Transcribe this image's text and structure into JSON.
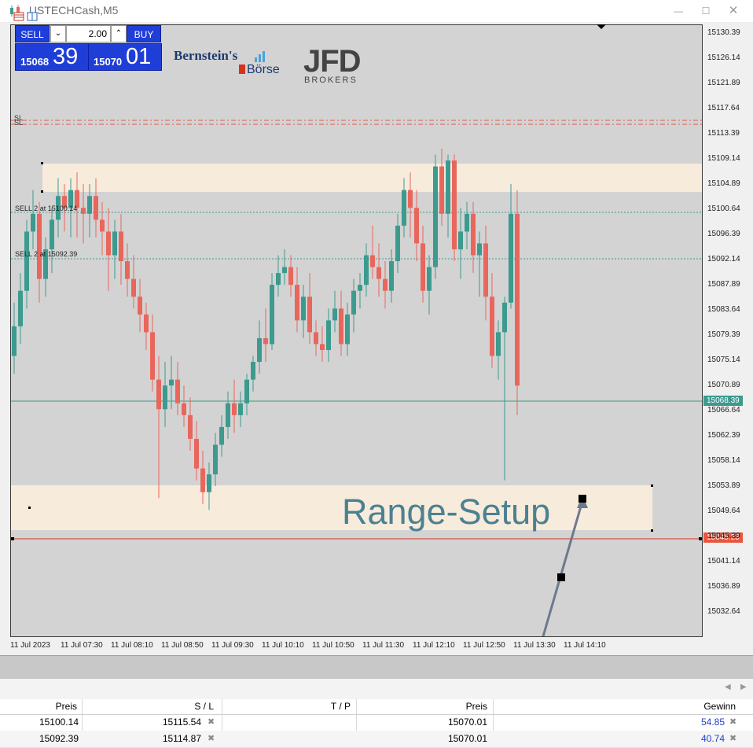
{
  "window": {
    "title": ".USTECHCash,M5"
  },
  "trade_panel": {
    "sell_label": "SELL",
    "buy_label": "BUY",
    "volume": "2.00",
    "sell_price_small": "15068",
    "sell_price_big": "39",
    "buy_price_small": "15070",
    "buy_price_big": "01"
  },
  "logos": {
    "bernstein_line1": "Bernstein's",
    "bernstein_line2": "Börse",
    "jfd_line1": "JFD",
    "jfd_line2": "BROKERS"
  },
  "chart": {
    "sl_label_1": "SL",
    "sl_label_2": "SL",
    "order1_label": "SELL 2 at 15100.14",
    "order2_label": "SELL 2 at 15092.39",
    "range_text": "Range-Setup",
    "bid_price_label": "15068.39",
    "red_line_price": "15045.23",
    "y_labels": [
      "15130.39",
      "15126.14",
      "15121.89",
      "15117.64",
      "15113.39",
      "15109.14",
      "15104.89",
      "15100.64",
      "15096.39",
      "15092.14",
      "15087.89",
      "15083.64",
      "15079.39",
      "15075.14",
      "15070.89",
      "15066.64",
      "15062.39",
      "15058.14",
      "15053.89",
      "15049.64",
      "15045.39",
      "15041.14",
      "15036.89",
      "15032.64"
    ],
    "x_labels": [
      "11 Jul 2023",
      "11 Jul 07:30",
      "11 Jul 08:10",
      "11 Jul 08:50",
      "11 Jul 09:30",
      "11 Jul 10:10",
      "11 Jul 10:50",
      "11 Jul 11:30",
      "11 Jul 12:10",
      "11 Jul 12:50",
      "11 Jul 13:30",
      "11 Jul 14:10"
    ],
    "colors": {
      "bull": "#3c9a8e",
      "bear": "#e8665c",
      "background": "#d3d3d3",
      "zone": "#f7ebdc",
      "sl_line": "#e05a4c",
      "order_line": "#3c9a8e",
      "range_text": "#4b8191"
    },
    "candles": [
      [
        15076,
        15085,
        15073,
        15081
      ],
      [
        15081,
        15090,
        15078,
        15087
      ],
      [
        15087,
        15099,
        15084,
        15097
      ],
      [
        15097,
        15104,
        15094,
        15100
      ],
      [
        15100,
        15102,
        15085,
        15089
      ],
      [
        15089,
        15096,
        15086,
        15094
      ],
      [
        15094,
        15101,
        15090,
        15099
      ],
      [
        15099,
        15106,
        15096,
        15103
      ],
      [
        15103,
        15105,
        15097,
        15101
      ],
      [
        15101,
        15106,
        15096,
        15104
      ],
      [
        15104,
        15107,
        15096,
        15101
      ],
      [
        15101,
        15105,
        15095,
        15100
      ],
      [
        15100,
        15105,
        15096,
        15103
      ],
      [
        15103,
        15106,
        15096,
        15099
      ],
      [
        15099,
        15102,
        15093,
        15097
      ],
      [
        15097,
        15101,
        15087,
        15093
      ],
      [
        15093,
        15099,
        15089,
        15097
      ],
      [
        15097,
        15100,
        15088,
        15092
      ],
      [
        15092,
        15095,
        15086,
        15089
      ],
      [
        15089,
        15093,
        15084,
        15086
      ],
      [
        15086,
        15089,
        15080,
        15083
      ],
      [
        15083,
        15085,
        15077,
        15080
      ],
      [
        15080,
        15083,
        15070,
        15072
      ],
      [
        15072,
        15076,
        15052,
        15067
      ],
      [
        15067,
        15075,
        15064,
        15071
      ],
      [
        15071,
        15076,
        15067,
        15072
      ],
      [
        15072,
        15075,
        15066,
        15068
      ],
      [
        15068,
        15071,
        15064,
        15066
      ],
      [
        15066,
        15069,
        15060,
        15062
      ],
      [
        15062,
        15065,
        15055,
        15057
      ],
      [
        15057,
        15060,
        15051,
        15053
      ],
      [
        15053,
        15058,
        15050,
        15056
      ],
      [
        15056,
        15063,
        15054,
        15061
      ],
      [
        15061,
        15066,
        15059,
        15064
      ],
      [
        15064,
        15070,
        15062,
        15068
      ],
      [
        15068,
        15072,
        15063,
        15066
      ],
      [
        15066,
        15070,
        15064,
        15068
      ],
      [
        15068,
        15073,
        15066,
        15072
      ],
      [
        15072,
        15076,
        15070,
        15075
      ],
      [
        15075,
        15082,
        15073,
        15079
      ],
      [
        15079,
        15084,
        15075,
        15078
      ],
      [
        15078,
        15090,
        15077,
        15088
      ],
      [
        15088,
        15093,
        15086,
        15090
      ],
      [
        15090,
        15094,
        15088,
        15091
      ],
      [
        15091,
        15093,
        15086,
        15088
      ],
      [
        15088,
        15091,
        15080,
        15082
      ],
      [
        15082,
        15088,
        15079,
        15086
      ],
      [
        15086,
        15090,
        15078,
        15080
      ],
      [
        15080,
        15082,
        15076,
        15078
      ],
      [
        15078,
        15081,
        15075,
        15077
      ],
      [
        15077,
        15084,
        15075,
        15082
      ],
      [
        15082,
        15087,
        15080,
        15084
      ],
      [
        15084,
        15087,
        15076,
        15078
      ],
      [
        15078,
        15085,
        15076,
        15083
      ],
      [
        15083,
        15089,
        15080,
        15087
      ],
      [
        15087,
        15090,
        15084,
        15088
      ],
      [
        15088,
        15095,
        15086,
        15093
      ],
      [
        15093,
        15098,
        15089,
        15091
      ],
      [
        15091,
        15095,
        15086,
        15089
      ],
      [
        15089,
        15092,
        15084,
        15087
      ],
      [
        15087,
        15094,
        15085,
        15092
      ],
      [
        15092,
        15100,
        15090,
        15098
      ],
      [
        15098,
        15106,
        15096,
        15104
      ],
      [
        15104,
        15107,
        15096,
        15101
      ],
      [
        15101,
        15104,
        15092,
        15095
      ],
      [
        15095,
        15098,
        15085,
        15087
      ],
      [
        15087,
        15093,
        15083,
        15091
      ],
      [
        15091,
        15110,
        15089,
        15108
      ],
      [
        15108,
        15111,
        15098,
        15100
      ],
      [
        15100,
        15110,
        15096,
        15109
      ],
      [
        15109,
        15110,
        15092,
        15094
      ],
      [
        15094,
        15101,
        15089,
        15097
      ],
      [
        15097,
        15102,
        15094,
        15100
      ],
      [
        15100,
        15102,
        15090,
        15093
      ],
      [
        15093,
        15097,
        15086,
        15095
      ],
      [
        15095,
        15098,
        15082,
        15086
      ],
      [
        15086,
        15090,
        15074,
        15076
      ],
      [
        15076,
        15082,
        15072,
        15080
      ],
      [
        15080,
        15086,
        15055,
        15085
      ],
      [
        15085,
        15105,
        15084,
        15100
      ],
      [
        15100,
        15104,
        15066,
        15071
      ]
    ]
  },
  "positions": {
    "headers": {
      "price": "Preis",
      "sl": "S / L",
      "tp": "T / P",
      "price2": "Preis",
      "profit": "Gewinn"
    },
    "rows": [
      {
        "price": "15100.14",
        "sl": "15115.54",
        "tp": "",
        "price2": "15070.01",
        "profit": "54.85"
      },
      {
        "price": "15092.39",
        "sl": "15114.87",
        "tp": "",
        "price2": "15070.01",
        "profit": "40.74"
      }
    ]
  }
}
